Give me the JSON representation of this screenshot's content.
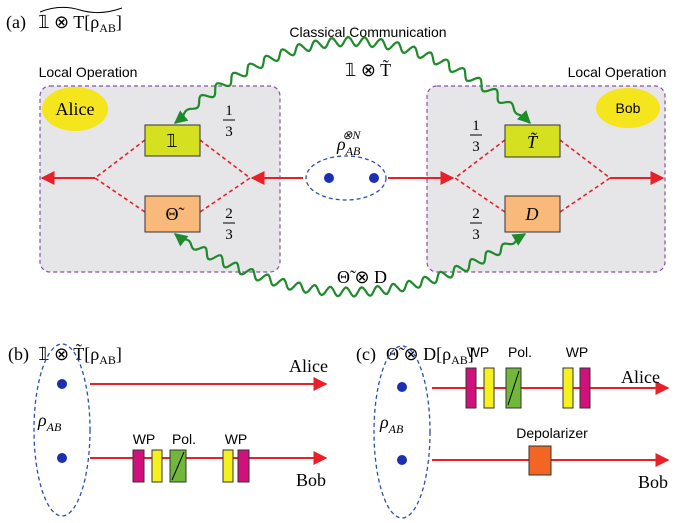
{
  "panel_a": {
    "label": "(a)",
    "title": {
      "main": "𝟙 ⊗ T[ρ",
      "sub": "AB",
      "end": "]"
    },
    "communication": "Classical Communication",
    "top_channel": "𝟙 ⊗ T̃",
    "bottom_channel": "Θ̃ ⊗ D",
    "state": {
      "base": "ρ",
      "sub": "AB",
      "sup": "⊗N"
    },
    "left": {
      "heading": "Local Operation",
      "party": "Alice",
      "ops": [
        "𝟙",
        "Θ̃"
      ],
      "probs": [
        {
          "num": "1",
          "den": "3"
        },
        {
          "num": "2",
          "den": "3"
        }
      ]
    },
    "right": {
      "heading": "Local Operation",
      "party": "Bob",
      "ops": [
        "T̃",
        "D"
      ],
      "probs": [
        {
          "num": "1",
          "den": "3"
        },
        {
          "num": "2",
          "den": "3"
        }
      ]
    }
  },
  "panel_b": {
    "label": "(b)",
    "title": {
      "main": "𝟙 ⊗ T̃[ρ",
      "sub": "AB",
      "end": "]"
    },
    "state": {
      "base": "ρ",
      "sub": "AB"
    },
    "lines": [
      "Alice",
      "Bob"
    ],
    "optics": [
      "WP",
      "Pol.",
      "WP"
    ]
  },
  "panel_c": {
    "label": "(c)",
    "title": {
      "main": "Θ̃ ⊗ D[ρ",
      "sub": "AB",
      "end": "]"
    },
    "state": {
      "base": "ρ",
      "sub": "AB"
    },
    "lines": [
      "Alice",
      "Bob"
    ],
    "optics": [
      "WP",
      "Pol.",
      "WP"
    ],
    "device": "Depolarizer"
  }
}
